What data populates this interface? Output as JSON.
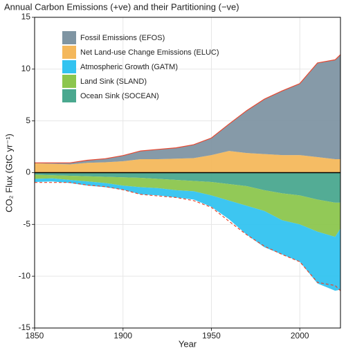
{
  "chart_data": {
    "type": "stacked_area",
    "title": "Annual Carbon Emissions (+ve) and their Partitioning (−ve)",
    "x_label": "Year",
    "y_label": "CO₂ Flux (GtC yr⁻¹)",
    "x": [
      1850,
      1860,
      1870,
      1880,
      1890,
      1900,
      1910,
      1920,
      1930,
      1940,
      1950,
      1960,
      1970,
      1980,
      1990,
      2000,
      2010,
      2020,
      2023
    ],
    "series": [
      {
        "name": "Fossil Emissions (EFOS)",
        "color": "#7f95a3",
        "values": [
          0.05,
          0.1,
          0.15,
          0.25,
          0.35,
          0.55,
          0.8,
          0.95,
          1.05,
          1.3,
          1.65,
          2.6,
          4.1,
          5.3,
          6.2,
          6.9,
          9.1,
          9.6,
          10.1
        ]
      },
      {
        "name": "Net Land-use Change Emissions (ELUC)",
        "color": "#f4b85c",
        "values": [
          0.9,
          0.85,
          0.8,
          0.95,
          1.0,
          1.1,
          1.3,
          1.3,
          1.35,
          1.4,
          1.7,
          2.1,
          1.9,
          1.8,
          1.7,
          1.7,
          1.5,
          1.3,
          1.3
        ]
      },
      {
        "name": "Atmospheric Growth (GATM)",
        "color": "#33c3f0",
        "values": [
          -0.3,
          -0.3,
          -0.3,
          -0.4,
          -0.4,
          -0.4,
          -0.7,
          -0.7,
          -0.7,
          -0.8,
          -1.1,
          -1.8,
          -2.8,
          -3.5,
          -3.3,
          -3.6,
          -5.0,
          -5.2,
          -5.9
        ]
      },
      {
        "name": "Land Sink (SLAND)",
        "color": "#8cc64e",
        "values": [
          -0.4,
          -0.3,
          -0.4,
          -0.5,
          -0.6,
          -0.8,
          -0.9,
          -0.9,
          -1.0,
          -1.0,
          -1.3,
          -1.6,
          -1.9,
          -2.0,
          -2.6,
          -2.8,
          -3.1,
          -3.3,
          -2.5
        ]
      },
      {
        "name": "Ocean Sink (SOCEAN)",
        "color": "#4aa88f",
        "values": [
          -0.2,
          -0.25,
          -0.3,
          -0.35,
          -0.4,
          -0.45,
          -0.5,
          -0.6,
          -0.7,
          -0.8,
          -0.9,
          -1.1,
          -1.3,
          -1.7,
          -2.0,
          -2.2,
          -2.6,
          -2.9,
          -2.9
        ]
      }
    ],
    "xlim": [
      1850,
      2023
    ],
    "xticks": [
      1850,
      1900,
      1950,
      2000
    ],
    "ylim": [
      -15,
      15
    ],
    "yticks": [
      -15,
      -10,
      -5,
      0,
      5,
      10,
      15
    ],
    "grid": true,
    "emission_line_color": "#e8472f"
  }
}
